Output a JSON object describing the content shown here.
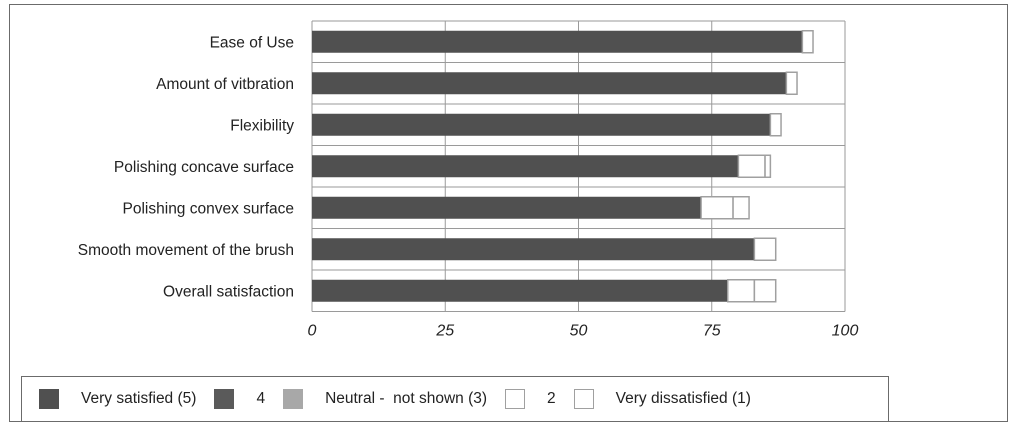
{
  "chart_data": {
    "type": "bar",
    "orientation": "horizontal",
    "stacked": true,
    "categories": [
      "Ease of Use",
      "Amount of vitbration",
      "Flexibility",
      "Polishing concave surface",
      "Polishing convex surface",
      "Smooth movement of the brush",
      "Overall satisfaction"
    ],
    "series": [
      {
        "name": "Very satisfied (5)",
        "values": [
          92,
          89,
          86,
          80,
          73,
          83,
          78
        ]
      },
      {
        "name": "4",
        "values": [
          0,
          0,
          0,
          0,
          0,
          0,
          0
        ]
      },
      {
        "name": "Neutral -  not shown (3)",
        "values": [
          0,
          0,
          0,
          0,
          0,
          0,
          0
        ]
      },
      {
        "name": "2",
        "values": [
          2,
          2,
          2,
          5,
          6,
          4,
          5
        ]
      },
      {
        "name": "Very dissatisfied (1)",
        "values": [
          0,
          0,
          0,
          1,
          3,
          0,
          4
        ]
      }
    ],
    "xlim": [
      0,
      100
    ],
    "xticks": [
      "0",
      "25",
      "50",
      "75",
      "100"
    ],
    "xlabel": "",
    "ylabel": "",
    "title": "",
    "grid": true,
    "legend_position": "bottom",
    "colors": {
      "very_satisfied": "#505050",
      "four": "#5a5a5a",
      "neutral": "#a8a8a8",
      "two": "#ffffff",
      "very_dissatisfied": "#ffffff",
      "outline": "#a0a0a0",
      "grid": "#9a9a9a"
    }
  }
}
